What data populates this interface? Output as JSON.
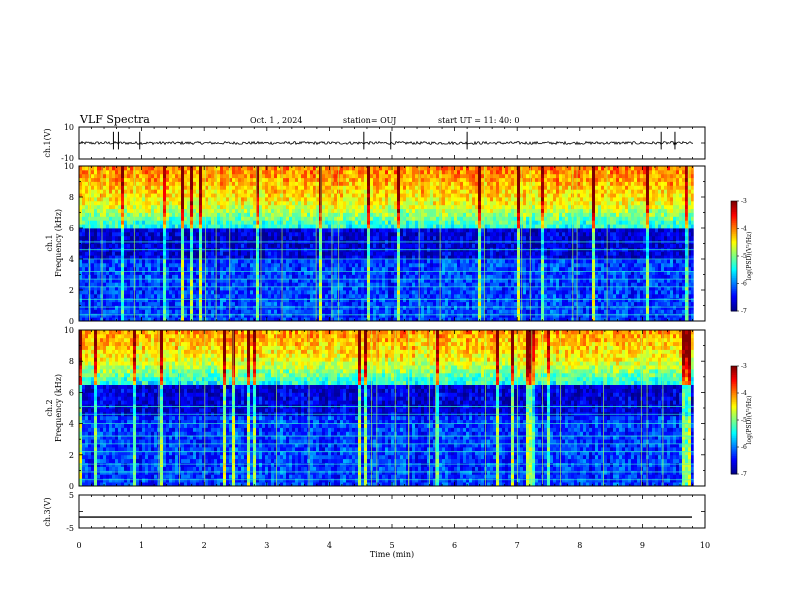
{
  "header": {
    "title": "VLF Spectra",
    "date": "Oct. 1 , 2024",
    "station": "station= OUJ",
    "start": "start  UT =  11: 40: 0"
  },
  "colors": {
    "background": "#ffffff",
    "axes": "#000000",
    "colormap": [
      "#00008f",
      "#0000ff",
      "#0080ff",
      "#00ffff",
      "#80ff80",
      "#ffff00",
      "#ff8000",
      "#ff0000",
      "#800000"
    ]
  },
  "chart_data": [
    {
      "type": "line",
      "panel": "ch1-waveform",
      "ylabel": "ch.1(V)",
      "ylim": [
        -10,
        10
      ],
      "yticks": [
        "10",
        "-10"
      ],
      "xlim": [
        0,
        10
      ],
      "baseline_v": 0,
      "spike_times_min": [
        0.55,
        0.63,
        0.97,
        4.55,
        4.98,
        6.2,
        9.3,
        9.52
      ]
    },
    {
      "type": "heatmap",
      "panel": "ch1-spectrogram",
      "ylabel_channel": "ch.1",
      "ylabel": "Frequency (kHz)",
      "ylim": [
        0,
        10
      ],
      "yticks": [
        "0",
        "2",
        "4",
        "6",
        "8",
        "10"
      ],
      "xlim": [
        0,
        9.82
      ],
      "colorbar": {
        "label": "log(PSD)(V²/Hz)",
        "range": [
          -7,
          -3
        ],
        "ticks": [
          "-3",
          "-4",
          "-5",
          "-6",
          "-7"
        ]
      },
      "noise_floor_khz": 6.0
    },
    {
      "type": "heatmap",
      "panel": "ch2-spectrogram",
      "ylabel_channel": "ch.2",
      "ylabel": "Frequency (kHz)",
      "ylim": [
        0,
        10
      ],
      "yticks": [
        "0",
        "2",
        "4",
        "6",
        "8",
        "10"
      ],
      "xlim": [
        0,
        9.82
      ],
      "colorbar": {
        "label": "log(PSD)(V²/Hz)",
        "range": [
          -7,
          -3
        ],
        "ticks": [
          "-3",
          "-4",
          "-5",
          "-6",
          "-7"
        ]
      },
      "noise_floor_khz": 6.5
    },
    {
      "type": "line",
      "panel": "ch3-waveform",
      "ylabel": "ch.3(V)",
      "ylim": [
        -5,
        5
      ],
      "yticks": [
        "5",
        "-5"
      ],
      "xlim": [
        0,
        10
      ],
      "constant_v": -1.7
    }
  ],
  "xaxis": {
    "label": "Time (min)",
    "ticks": [
      "0",
      "1",
      "2",
      "3",
      "4",
      "5",
      "6",
      "7",
      "8",
      "9",
      "10"
    ]
  }
}
